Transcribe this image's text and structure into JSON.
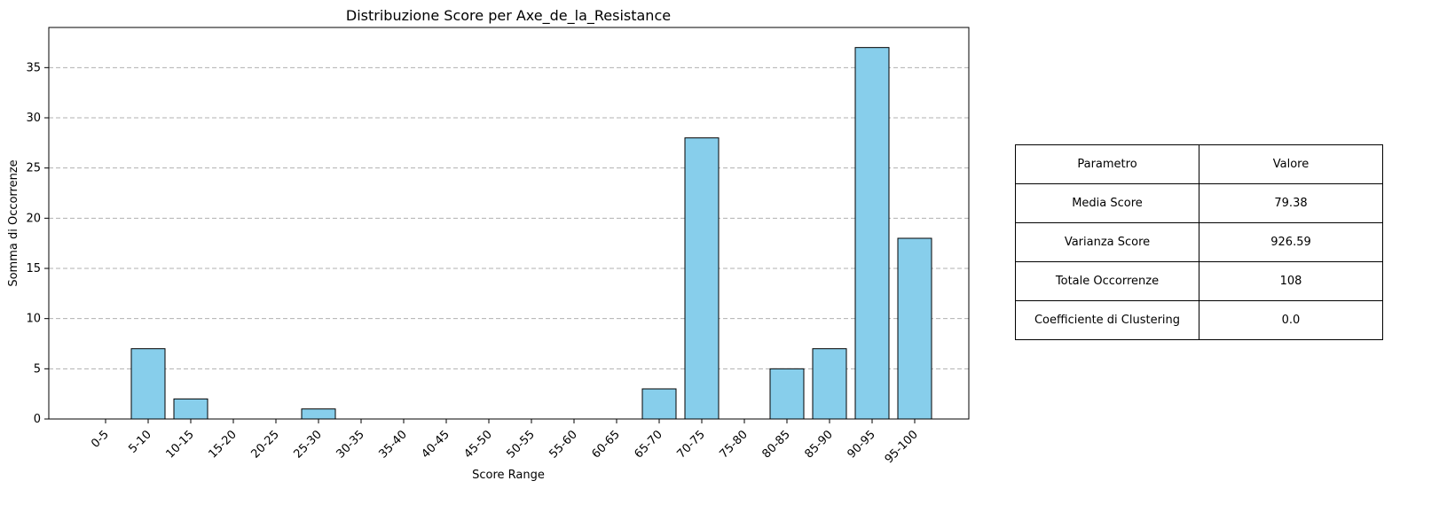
{
  "chart_data": {
    "type": "bar",
    "title": "Distribuzione Score per Axe_de_la_Resistance",
    "xlabel": "Score Range",
    "ylabel": "Somma di Occorrenze",
    "categories": [
      "0-5",
      "5-10",
      "10-15",
      "15-20",
      "20-25",
      "25-30",
      "30-35",
      "35-40",
      "40-45",
      "45-50",
      "50-55",
      "55-60",
      "60-65",
      "65-70",
      "70-75",
      "75-80",
      "80-85",
      "85-90",
      "90-95",
      "95-100"
    ],
    "values": [
      0,
      7,
      2,
      0,
      0,
      1,
      0,
      0,
      0,
      0,
      0,
      0,
      0,
      3,
      28,
      0,
      5,
      7,
      37,
      18
    ],
    "ylim": [
      0,
      39
    ],
    "yticks": [
      0,
      5,
      10,
      15,
      20,
      25,
      30,
      35
    ],
    "grid": "y-dashed",
    "bar_color": "#87CEEB",
    "edge_color": "#000000"
  },
  "table": {
    "header": [
      "Parametro",
      "Valore"
    ],
    "rows": [
      [
        "Media Score",
        "79.38"
      ],
      [
        "Varianza Score",
        "926.59"
      ],
      [
        "Totale Occorrenze",
        "108"
      ],
      [
        "Coefficiente di Clustering",
        "0.0"
      ]
    ]
  }
}
